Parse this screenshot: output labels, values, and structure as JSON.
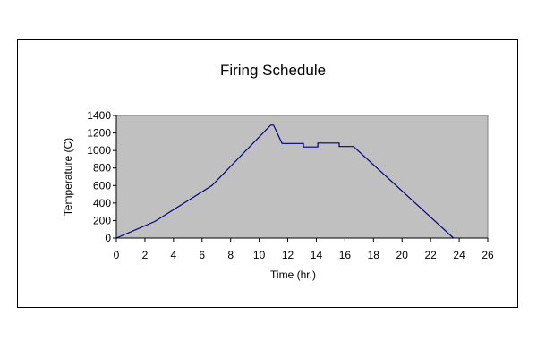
{
  "chart_data": {
    "type": "line",
    "title": "Firing Schedule",
    "xlabel": "Time (hr.)",
    "ylabel": "Temperature (C)",
    "xlim": [
      0,
      26
    ],
    "ylim": [
      0,
      1400
    ],
    "xticks": [
      0,
      2,
      4,
      6,
      8,
      10,
      12,
      14,
      16,
      18,
      20,
      22,
      24,
      26
    ],
    "yticks": [
      0,
      200,
      400,
      600,
      800,
      1000,
      1200,
      1400
    ],
    "grid": false,
    "legend": "none",
    "plot_background": "#c0c0c0",
    "line_color": "#000080",
    "series": [
      {
        "x": [
          0,
          2.7,
          6.7,
          10.8,
          11.0,
          11.6,
          13.1,
          13.1,
          14.1,
          14.1,
          15.6,
          15.6,
          16.6,
          23.6
        ],
        "y": [
          0,
          190,
          600,
          1290,
          1290,
          1080,
          1080,
          1040,
          1040,
          1085,
          1085,
          1045,
          1045,
          0
        ]
      }
    ]
  }
}
